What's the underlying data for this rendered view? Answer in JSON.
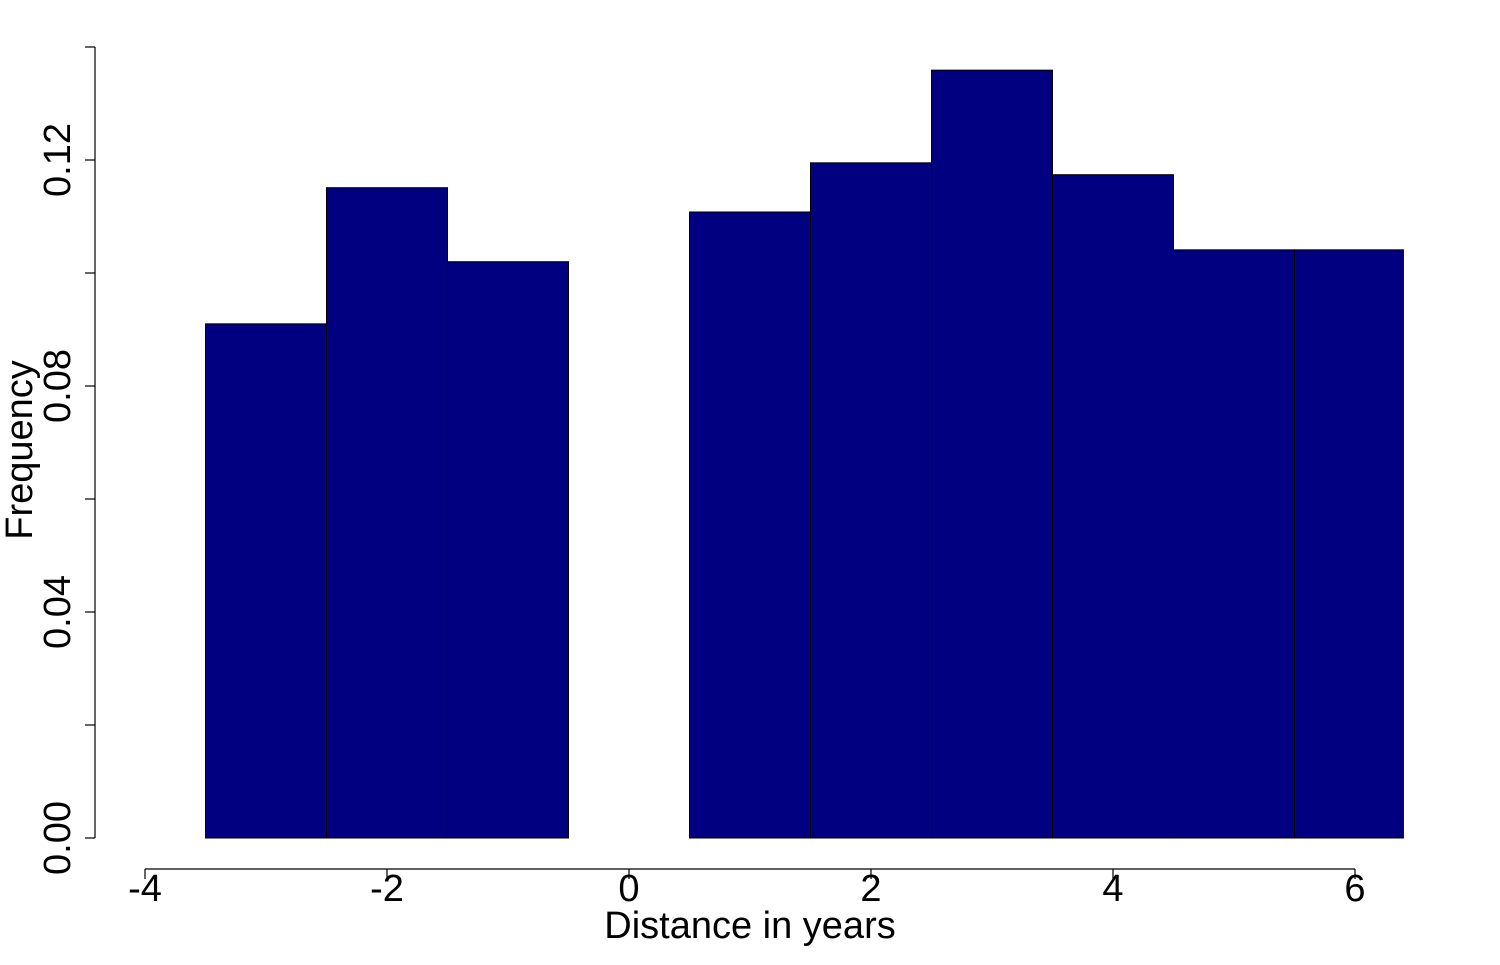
{
  "chart_data": {
    "type": "histogram",
    "xlabel": "Distance in years",
    "ylabel": "Frequency",
    "bins": [
      -3.5,
      -2.5,
      -1.5,
      -0.5,
      0.5,
      1.5,
      2.5,
      3.5,
      4.5,
      5.5,
      6.4
    ],
    "values": [
      0.091,
      0.1151,
      0.102,
      0,
      0.1108,
      0.1195,
      0.1359,
      0.1174,
      0.1041,
      0.1041
    ],
    "color": "#000080",
    "xlim": [
      -4,
      6
    ],
    "xticks": [
      -4,
      -2,
      0,
      2,
      4,
      6
    ],
    "ylim": [
      0,
      0.14
    ],
    "yticks": [
      {
        "value": 0,
        "label": "0.00"
      },
      0.04,
      0.08,
      0.12
    ],
    "yminorticks": [
      0.02,
      0.06,
      0.1,
      0.14
    ]
  }
}
